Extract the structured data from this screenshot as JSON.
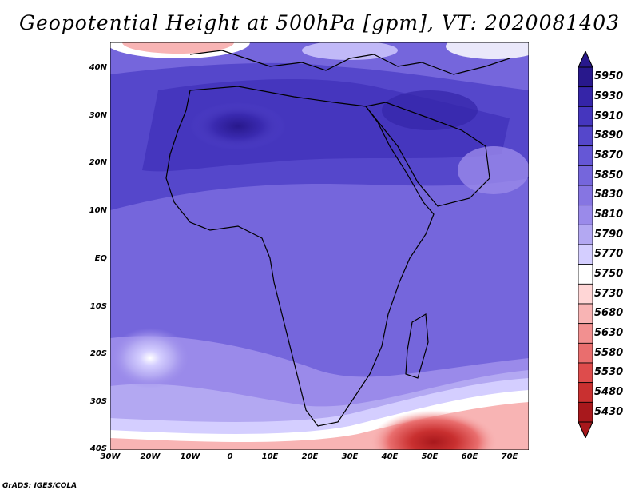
{
  "title": "Geopotential Height at 500hPa [gpm], VT: 2020081403",
  "credit": "GrADS: IGES/COLA",
  "lat_labels": [
    "40N",
    "30N",
    "20N",
    "10N",
    "EQ",
    "10S",
    "20S",
    "30S",
    "40S"
  ],
  "lon_labels": [
    "30W",
    "20W",
    "10W",
    "0",
    "10E",
    "20E",
    "30E",
    "40E",
    "50E",
    "60E",
    "70E"
  ],
  "colorbar": {
    "labels": [
      "5950",
      "5930",
      "5910",
      "5890",
      "5870",
      "5850",
      "5830",
      "5810",
      "5790",
      "5770",
      "5750",
      "5730",
      "5680",
      "5630",
      "5580",
      "5530",
      "5480",
      "5430"
    ],
    "colors": [
      "#28188c",
      "#3525a8",
      "#4536be",
      "#5547cb",
      "#6557d6",
      "#7566dc",
      "#8675e2",
      "#9a8aea",
      "#b3a8f2",
      "#d4ceff",
      "#ffffff",
      "#ffd6d6",
      "#f8b4b4",
      "#f29090",
      "#e96e6e",
      "#de4c4c",
      "#c93030",
      "#a8181c"
    ]
  },
  "chart_data": {
    "type": "heatmap",
    "variable": "Geopotential Height at 500hPa",
    "units": "gpm",
    "valid_time": "2020081403",
    "lon_range": [
      -30,
      75
    ],
    "lat_range": [
      -40,
      45
    ],
    "contour_levels": [
      5430,
      5480,
      5530,
      5580,
      5630,
      5680,
      5730,
      5750,
      5770,
      5790,
      5810,
      5830,
      5850,
      5870,
      5890,
      5910,
      5930,
      5950
    ],
    "features": {
      "max_center": "Sahara / North Africa, about 5910-5930 gpm near 25N",
      "min_center": "Southern Ocean near 40S 50E, below 5430 gpm",
      "secondary_high": "South Atlantic high near 22S 20W, about 5790-5810 gpm",
      "trough_north": "Northeast Atlantic near 43N 20W, about 5750 gpm"
    }
  }
}
